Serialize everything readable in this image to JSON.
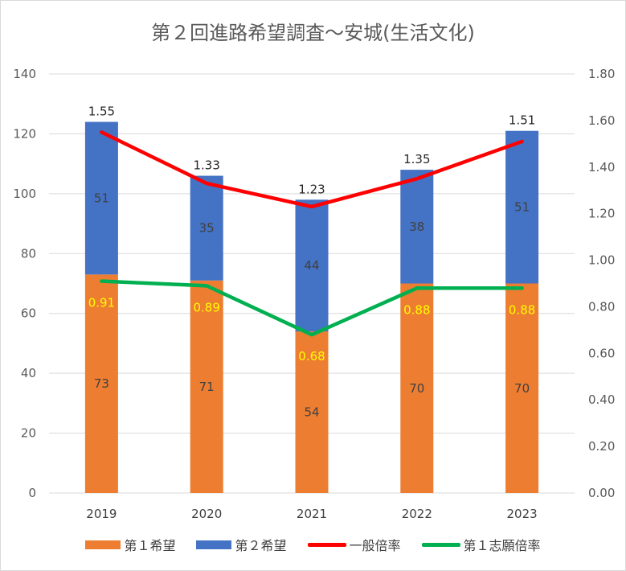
{
  "chart_data": {
    "type": "bar",
    "title": "第２回進路希望調査～安城(生活文化)",
    "categories": [
      "2019",
      "2020",
      "2021",
      "2022",
      "2023"
    ],
    "stacked": true,
    "series": [
      {
        "name": "第１希望",
        "type": "bar",
        "axis": "left",
        "color": "#ed7d31",
        "values": [
          73,
          71,
          54,
          70,
          70
        ]
      },
      {
        "name": "第２希望",
        "type": "bar",
        "axis": "left",
        "color": "#4472c4",
        "values": [
          51,
          35,
          44,
          38,
          51
        ]
      },
      {
        "name": "一般倍率",
        "type": "line",
        "axis": "right",
        "color": "#ff0000",
        "values": [
          1.55,
          1.33,
          1.23,
          1.35,
          1.51
        ],
        "labels": [
          "1.55",
          "1.33",
          "1.23",
          "1.35",
          "1.51"
        ]
      },
      {
        "name": "第１志願倍率",
        "type": "line",
        "axis": "right",
        "color": "#00b050",
        "values": [
          0.91,
          0.89,
          0.68,
          0.88,
          0.88
        ],
        "labels": [
          "0.91",
          "0.89",
          "0.68",
          "0.88",
          "0.88"
        ]
      }
    ],
    "y_left": {
      "min": 0,
      "max": 140,
      "ticks": [
        "0",
        "20",
        "40",
        "60",
        "80",
        "100",
        "120",
        "140"
      ]
    },
    "y_right": {
      "min": 0,
      "max": 1.8,
      "ticks": [
        "0.00",
        "0.20",
        "0.40",
        "0.60",
        "0.80",
        "1.00",
        "1.20",
        "1.40",
        "1.60",
        "1.80"
      ]
    },
    "grid": true,
    "legend_position": "bottom"
  }
}
